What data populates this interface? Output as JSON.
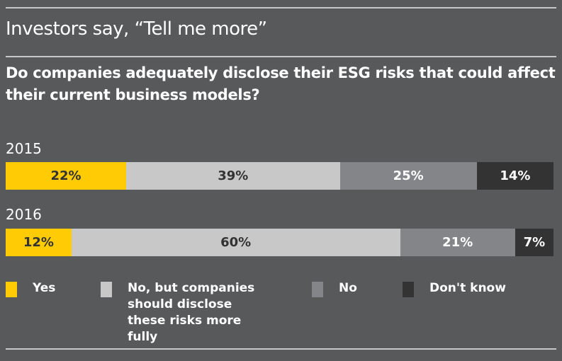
{
  "chart_data": {
    "type": "bar",
    "orientation": "horizontal-stacked-100",
    "title": "Investors say, “Tell me more”",
    "subtitle": "Do companies adequately disclose their ESG risks that could affect their current business models?",
    "categories": [
      "2015",
      "2016"
    ],
    "series": [
      {
        "name": "Yes",
        "color": "#ffcb05",
        "text_color": "#333333",
        "values": [
          22,
          12
        ],
        "labels": [
          "22%",
          "12%"
        ]
      },
      {
        "name": "No, but companies should disclose these risks more fully",
        "color": "#c8c8c8",
        "text_color": "#333333",
        "values": [
          39,
          60
        ],
        "labels": [
          "39%",
          "60%"
        ]
      },
      {
        "name": "No",
        "color": "#848588",
        "text_color": "#ffffff",
        "values": [
          25,
          21
        ],
        "labels": [
          "25%",
          "21%"
        ]
      },
      {
        "name": "Don't know",
        "color": "#333333",
        "text_color": "#ffffff",
        "values": [
          14,
          7
        ],
        "labels": [
          "14%",
          "7%"
        ]
      }
    ],
    "legend": "bottom"
  }
}
